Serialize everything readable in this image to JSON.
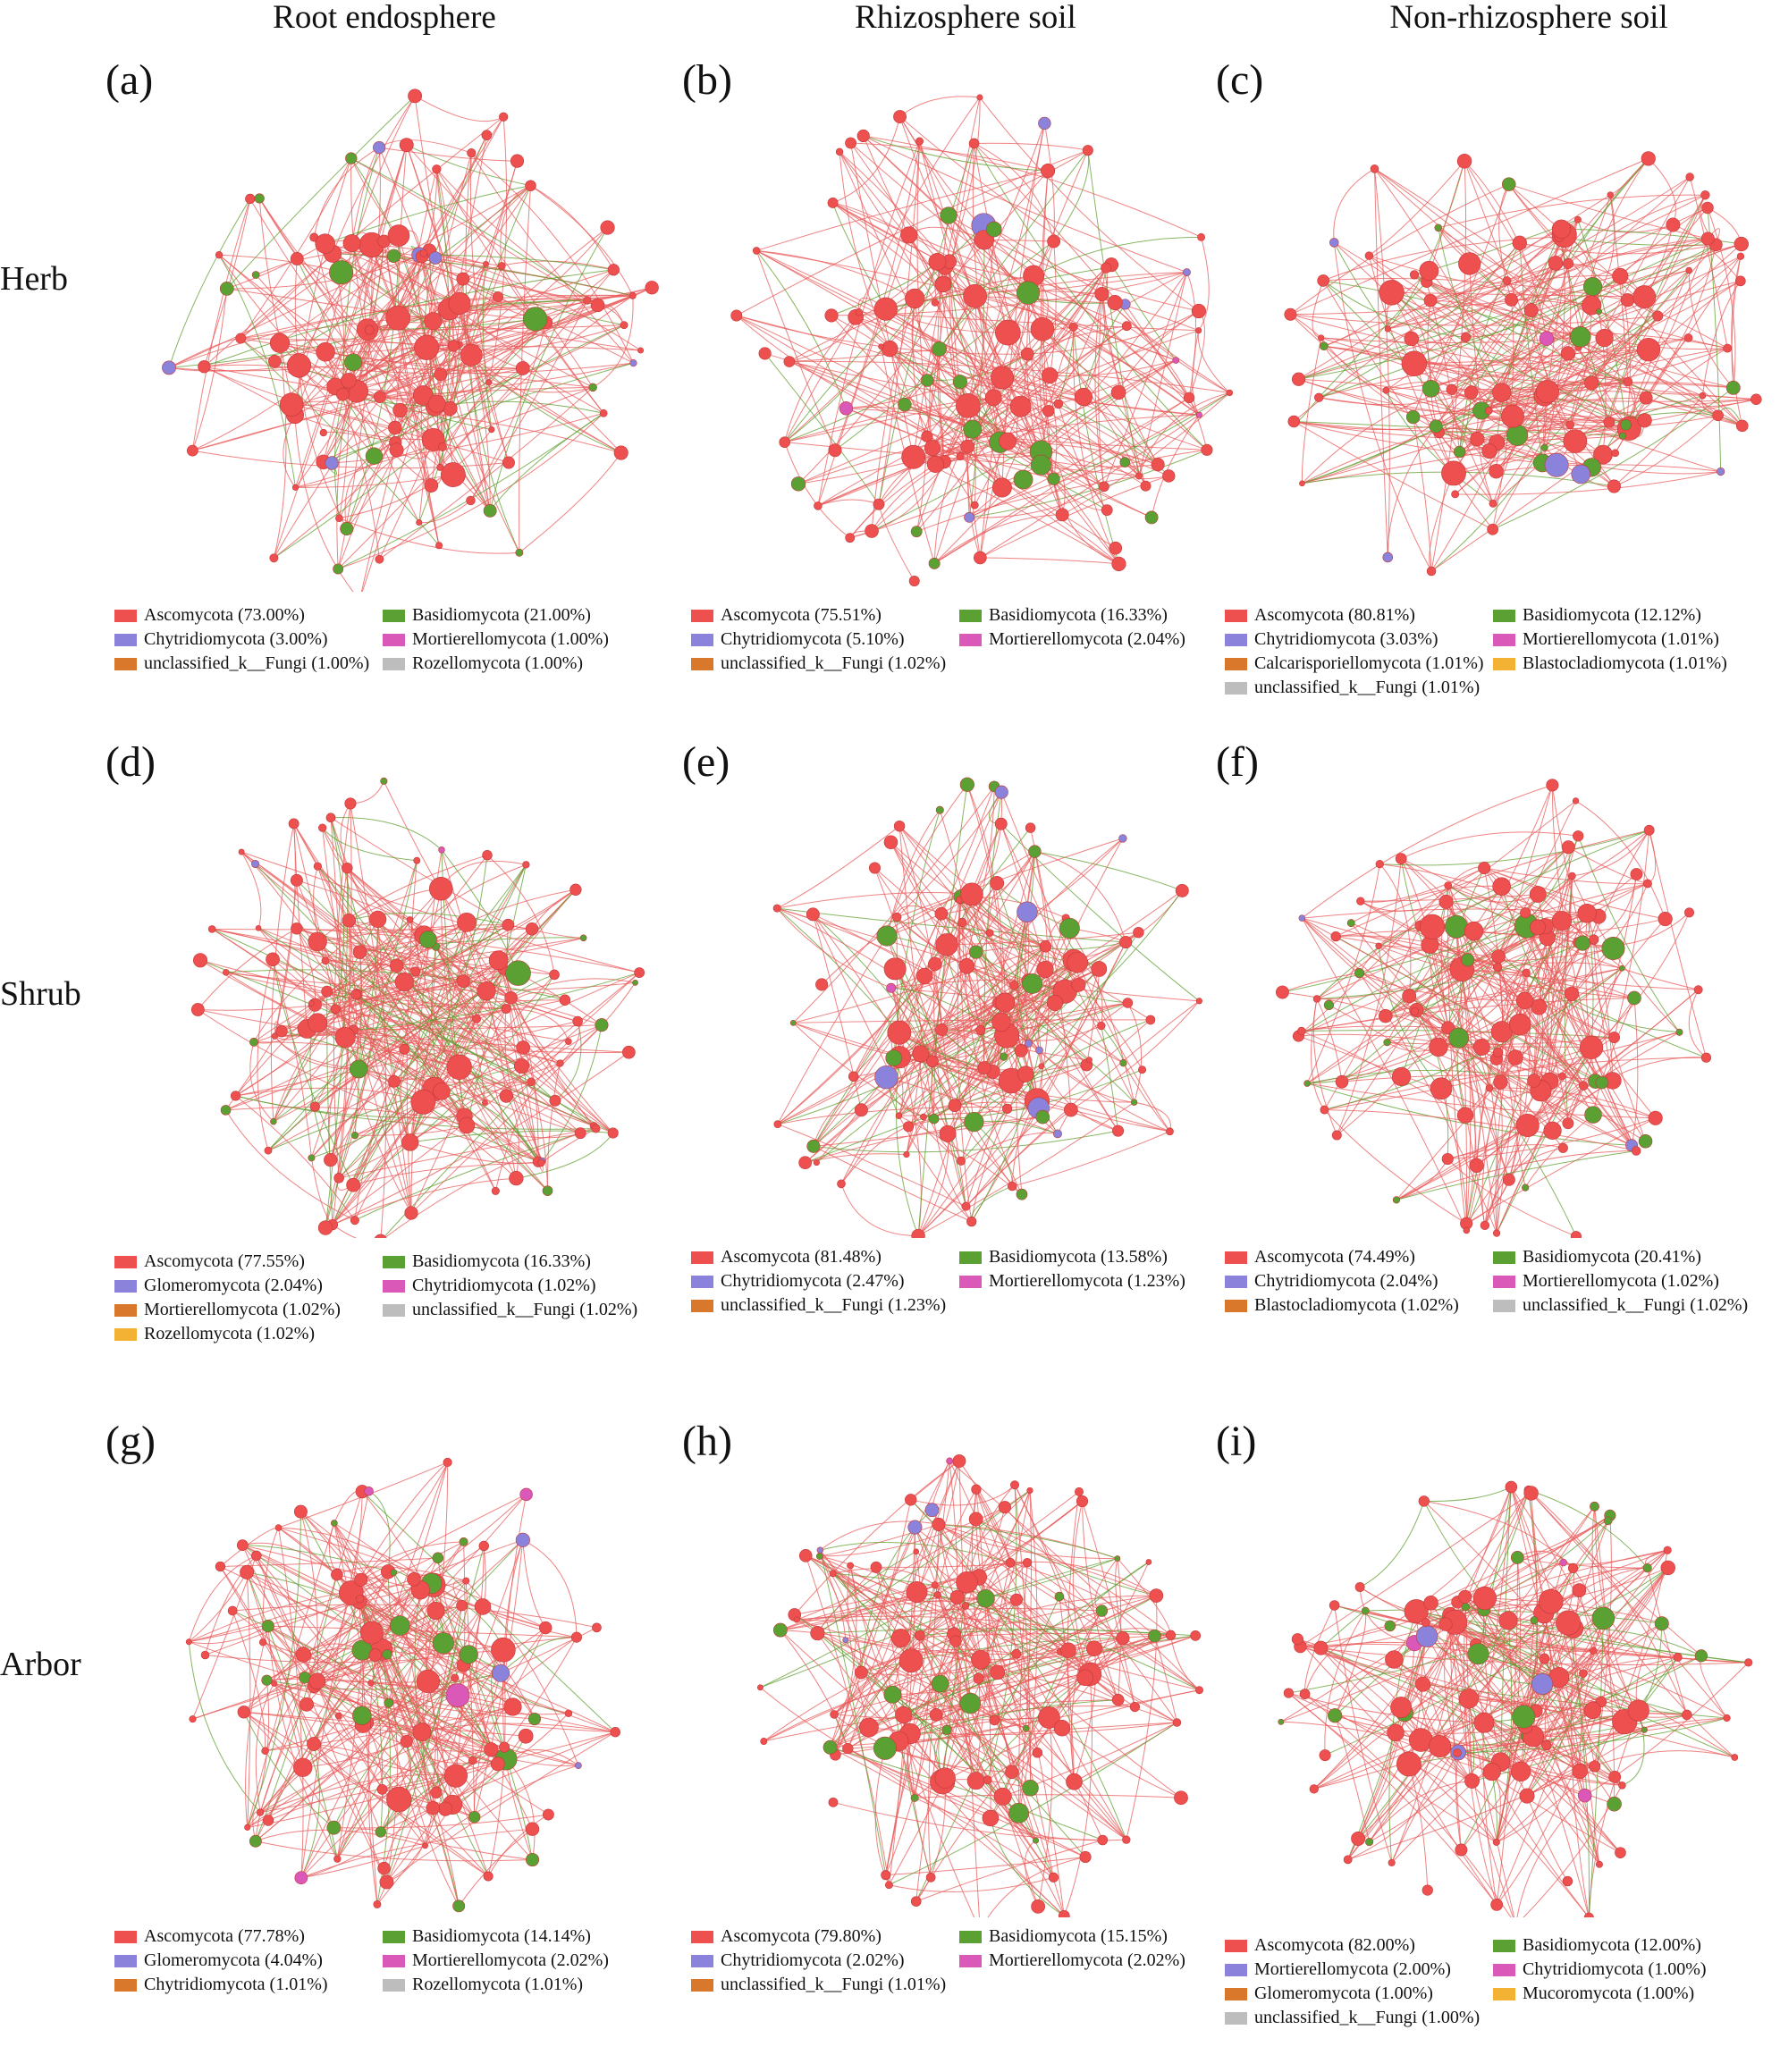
{
  "columns": [
    "Root endosphere",
    "Rhizosphere soil",
    "Non-rhizosphere soil"
  ],
  "rows": [
    "Herb",
    "Shrub",
    "Arbor"
  ],
  "colors": {
    "Ascomycota": "#ee5050",
    "Basidiomycota": "#5ba032",
    "Chytridiomycota": "#8a82db",
    "Glomeromycota": "#8a82db",
    "Mortierellomycota": "#d958b8",
    "unclassified_k__Fungi": "#d9782a",
    "Rozellomycota": "#bdbdbd",
    "Calcarisporiellomycota": "#d9782a",
    "Blastocladiomycota": "#f4b235",
    "Mucoromycota": "#f4b235",
    "edge_positive": "#ea5a5a",
    "edge_negative": "#5e9e2e"
  },
  "panels": [
    {
      "label": "(a)",
      "legend": [
        {
          "text": "Ascomycota (73.00%)",
          "color": "#ee5050"
        },
        {
          "text": "Basidiomycota (21.00%)",
          "color": "#5ba032"
        },
        {
          "text": "Chytridiomycota (3.00%)",
          "color": "#8a82db"
        },
        {
          "text": "Mortierellomycota (1.00%)",
          "color": "#d958b8"
        },
        {
          "text": "unclassified_k__Fungi (1.00%)",
          "color": "#d9782a"
        },
        {
          "text": "Rozellomycota (1.00%)",
          "color": "#bdbdbd"
        }
      ]
    },
    {
      "label": "(b)",
      "legend": [
        {
          "text": "Ascomycota (75.51%)",
          "color": "#ee5050"
        },
        {
          "text": "Basidiomycota (16.33%)",
          "color": "#5ba032"
        },
        {
          "text": "Chytridiomycota (5.10%)",
          "color": "#8a82db"
        },
        {
          "text": "Mortierellomycota (2.04%)",
          "color": "#d958b8"
        },
        {
          "text": "unclassified_k__Fungi (1.02%)",
          "color": "#d9782a"
        }
      ]
    },
    {
      "label": "(c)",
      "legend": [
        {
          "text": "Ascomycota (80.81%)",
          "color": "#ee5050"
        },
        {
          "text": "Basidiomycota (12.12%)",
          "color": "#5ba032"
        },
        {
          "text": "Chytridiomycota (3.03%)",
          "color": "#8a82db"
        },
        {
          "text": "Mortierellomycota (1.01%)",
          "color": "#d958b8"
        },
        {
          "text": "Calcarisporiellomycota (1.01%)",
          "color": "#d9782a"
        },
        {
          "text": "Blastocladiomycota (1.01%)",
          "color": "#f4b235"
        },
        {
          "text": "unclassified_k__Fungi (1.01%)",
          "color": "#bdbdbd"
        }
      ]
    },
    {
      "label": "(d)",
      "legend": [
        {
          "text": "Ascomycota (77.55%)",
          "color": "#ee5050"
        },
        {
          "text": "Basidiomycota (16.33%)",
          "color": "#5ba032"
        },
        {
          "text": "Glomeromycota (2.04%)",
          "color": "#8a82db"
        },
        {
          "text": "Chytridiomycota (1.02%)",
          "color": "#d958b8"
        },
        {
          "text": "Mortierellomycota (1.02%)",
          "color": "#d9782a"
        },
        {
          "text": "unclassified_k__Fungi (1.02%)",
          "color": "#bdbdbd"
        },
        {
          "text": "Rozellomycota (1.02%)",
          "color": "#f4b235"
        }
      ]
    },
    {
      "label": "(e)",
      "legend": [
        {
          "text": "Ascomycota (81.48%)",
          "color": "#ee5050"
        },
        {
          "text": "Basidiomycota (13.58%)",
          "color": "#5ba032"
        },
        {
          "text": "Chytridiomycota (2.47%)",
          "color": "#8a82db"
        },
        {
          "text": "Mortierellomycota (1.23%)",
          "color": "#d958b8"
        },
        {
          "text": "unclassified_k__Fungi (1.23%)",
          "color": "#d9782a"
        }
      ]
    },
    {
      "label": "(f)",
      "legend": [
        {
          "text": "Ascomycota (74.49%)",
          "color": "#ee5050"
        },
        {
          "text": "Basidiomycota (20.41%)",
          "color": "#5ba032"
        },
        {
          "text": "Chytridiomycota (2.04%)",
          "color": "#8a82db"
        },
        {
          "text": "Mortierellomycota (1.02%)",
          "color": "#d958b8"
        },
        {
          "text": "Blastocladiomycota (1.02%)",
          "color": "#d9782a"
        },
        {
          "text": "unclassified_k__Fungi (1.02%)",
          "color": "#bdbdbd"
        }
      ]
    },
    {
      "label": "(g)",
      "legend": [
        {
          "text": "Ascomycota (77.78%)",
          "color": "#ee5050"
        },
        {
          "text": "Basidiomycota (14.14%)",
          "color": "#5ba032"
        },
        {
          "text": "Glomeromycota (4.04%)",
          "color": "#8a82db"
        },
        {
          "text": "Mortierellomycota (2.02%)",
          "color": "#d958b8"
        },
        {
          "text": "Chytridiomycota (1.01%)",
          "color": "#d9782a"
        },
        {
          "text": "Rozellomycota (1.01%)",
          "color": "#bdbdbd"
        }
      ]
    },
    {
      "label": "(h)",
      "legend": [
        {
          "text": "Ascomycota (79.80%)",
          "color": "#ee5050"
        },
        {
          "text": "Basidiomycota (15.15%)",
          "color": "#5ba032"
        },
        {
          "text": "Chytridiomycota (2.02%)",
          "color": "#8a82db"
        },
        {
          "text": "Mortierellomycota (2.02%)",
          "color": "#d958b8"
        },
        {
          "text": "unclassified_k__Fungi (1.01%)",
          "color": "#d9782a"
        }
      ]
    },
    {
      "label": "(i)",
      "legend": [
        {
          "text": "Ascomycota (82.00%)",
          "color": "#ee5050"
        },
        {
          "text": "Basidiomycota (12.00%)",
          "color": "#5ba032"
        },
        {
          "text": "Mortierellomycota (2.00%)",
          "color": "#8a82db"
        },
        {
          "text": "Chytridiomycota (1.00%)",
          "color": "#d958b8"
        },
        {
          "text": "Glomeromycota (1.00%)",
          "color": "#d9782a"
        },
        {
          "text": "Mucoromycota (1.00%)",
          "color": "#f4b235"
        },
        {
          "text": "unclassified_k__Fungi (1.00%)",
          "color": "#bdbdbd"
        }
      ]
    }
  ]
}
